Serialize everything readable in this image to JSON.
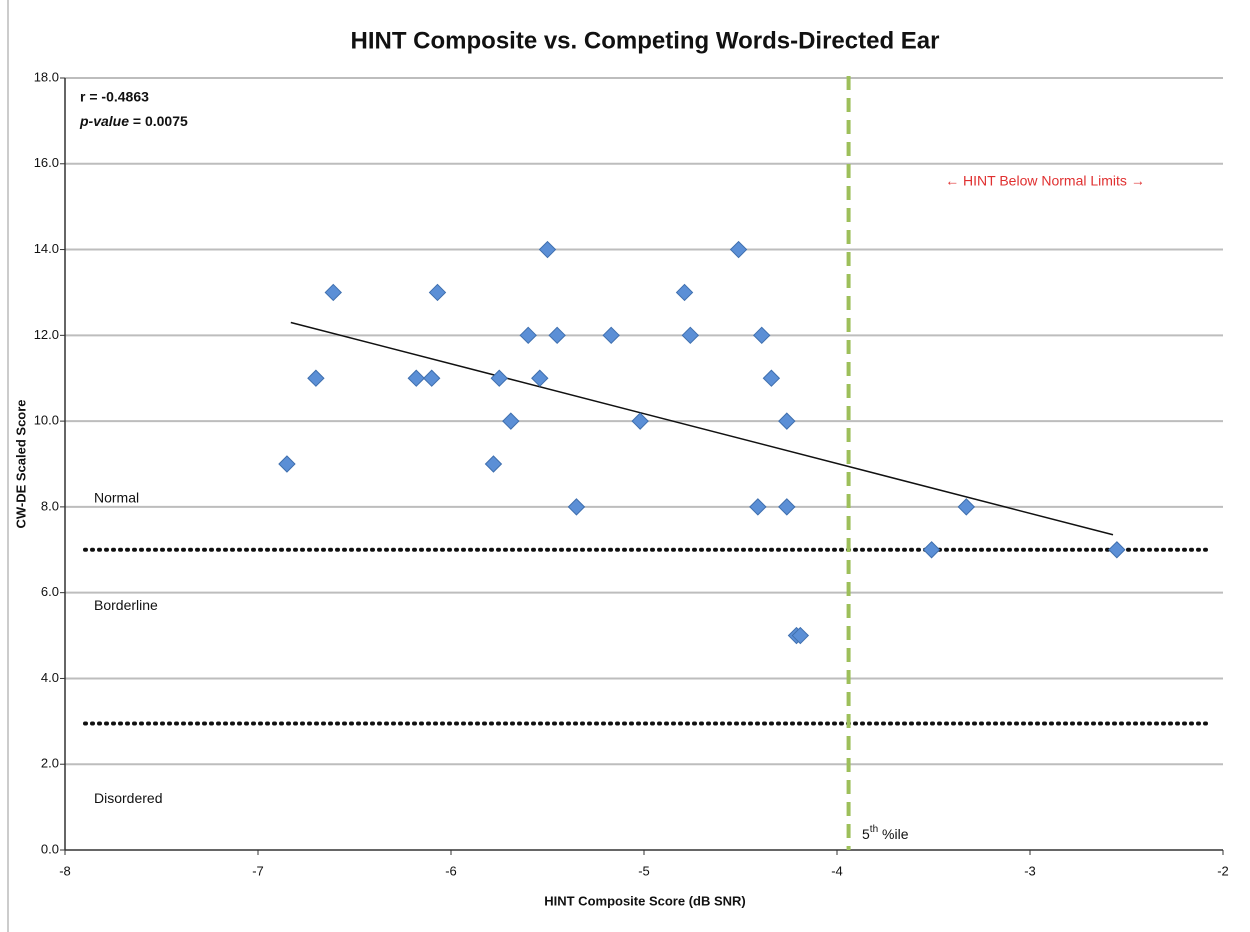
{
  "chart_data": {
    "type": "scatter",
    "title": "HINT Composite vs. Competing Words-Directed Ear",
    "x_label": "HINT Composite Score (dB SNR)",
    "y_label": "CW-DE Scaled Score",
    "color": "#5b8fd6",
    "x": [
      -6.85,
      -6.7,
      -6.61,
      -6.18,
      -6.1,
      -6.07,
      -5.78,
      -5.75,
      -5.69,
      -5.6,
      -5.54,
      -5.5,
      -5.45,
      -5.35,
      -5.17,
      -5.02,
      -4.79,
      -4.76,
      -4.51,
      -4.41,
      -4.39,
      -4.34,
      -4.26,
      -4.26,
      -4.21,
      -4.19,
      -3.51,
      -3.33,
      -2.55
    ],
    "values": [
      9,
      11,
      13,
      11,
      11,
      13,
      9,
      11,
      10,
      12,
      11,
      14,
      12,
      8,
      12,
      10,
      13,
      12,
      14,
      8,
      12,
      11,
      10,
      8,
      5,
      5,
      7,
      8,
      7
    ],
    "xlim": [
      -8,
      -2
    ],
    "xticks": [
      -8,
      -7,
      -6,
      -5,
      -4,
      -3,
      -2
    ],
    "ylim": [
      0,
      18
    ],
    "yticks": [
      {
        "value": 0,
        "label": "0.0"
      },
      {
        "value": 2,
        "label": "2.0"
      },
      {
        "value": 4,
        "label": "4.0"
      },
      {
        "value": 6,
        "label": "6.0"
      },
      {
        "value": 8,
        "label": "8.0"
      },
      {
        "value": 10,
        "label": "10.0"
      },
      {
        "value": 12,
        "label": "12.0"
      },
      {
        "value": 14,
        "label": "14.0"
      },
      {
        "value": 16,
        "label": "16.0"
      },
      {
        "value": 18,
        "label": "18.0"
      }
    ],
    "grid": true,
    "trendline": {
      "x": [
        -6.83,
        -2.57
      ],
      "y": [
        12.3,
        7.35
      ],
      "color": "#111111"
    },
    "hlines": [
      {
        "value": 7,
        "color": "#111111"
      },
      {
        "value": 2.95,
        "color": "#111111"
      }
    ],
    "vline": {
      "value": -3.94,
      "color": "#9dbf5a"
    },
    "stats": {
      "r": "r = -0.4863",
      "p_name": "p-value",
      "p_rest": " = 0.0075"
    },
    "zones": [
      "Normal",
      "Borderline",
      "Disordered"
    ],
    "zone_y": [
      8,
      5.5,
      1
    ],
    "range_note": {
      "text": "← HINT Below Normal Limits →",
      "color": "#e03030"
    },
    "percentile": {
      "num": "5",
      "sup": "th",
      "rest": " %ile"
    }
  }
}
